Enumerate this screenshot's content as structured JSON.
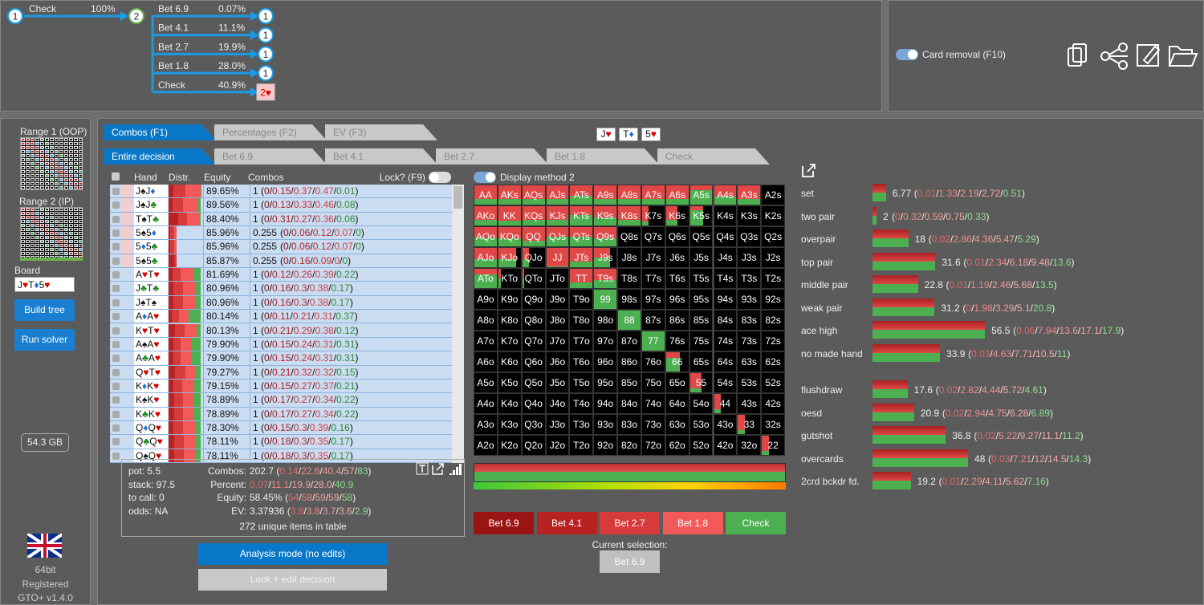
{
  "tree": {
    "root": "1",
    "root_action": "Check",
    "root_pct": "100%",
    "node": "2",
    "actions": [
      {
        "label": "Bet 6.9",
        "pct": "0.07%",
        "child": "1"
      },
      {
        "label": "Bet 4.1",
        "pct": "11.1%",
        "child": "1"
      },
      {
        "label": "Bet 2.7",
        "pct": "19.9%",
        "child": "1"
      },
      {
        "label": "Bet 1.8",
        "pct": "28.0%",
        "child": "1"
      },
      {
        "label": "Check",
        "pct": "40.9%",
        "child": "2♥"
      }
    ]
  },
  "card_removal": "Card removal (F10)",
  "sidebar": {
    "range1": "Range 1 (OOP)",
    "range2": "Range 2 (IP)",
    "board_label": "Board",
    "board": "J♥T♦5♥",
    "build": "Build tree",
    "run": "Run solver",
    "memory": "54.3 GB",
    "bits": "64bit",
    "registered": "Registered",
    "version": "GTO+ v1.4.0"
  },
  "view_tabs": [
    "Combos (F1)",
    "Percentages (F2)",
    "EV (F3)"
  ],
  "board_cards": [
    "J♥",
    "T♦",
    "5♥"
  ],
  "decision_tabs": [
    "Entire decision",
    "Bet 6.9",
    "Bet 4.1",
    "Bet 2.7",
    "Bet 1.8",
    "Check"
  ],
  "table": {
    "headers": [
      "Hand",
      "Distr.",
      "Equity",
      "Combos"
    ],
    "lock": "Lock? (F9)",
    "rows": [
      {
        "hand": "J♠J♦",
        "equity": "89.65%",
        "total": 1,
        "breakdown": "(0/0.15/0.37/0.47/0.01)"
      },
      {
        "hand": "J♠J♣",
        "equity": "89.56%",
        "total": 1,
        "breakdown": "(0/0.13/0.33/0.46/0.08)"
      },
      {
        "hand": "T♠T♣",
        "equity": "88.40%",
        "total": 1,
        "breakdown": "(0/0.31/0.27/0.36/0.06)"
      },
      {
        "hand": "5♠5♦",
        "equity": "85.96%",
        "total": 0.255,
        "breakdown": "(0/0.06/0.12/0.07/0)"
      },
      {
        "hand": "5♦5♣",
        "equity": "85.96%",
        "total": 0.255,
        "breakdown": "(0/0.06/0.12/0.07/0)"
      },
      {
        "hand": "5♠5♣",
        "equity": "85.87%",
        "total": 0.255,
        "breakdown": "(0/0.16/0.09/0/0)"
      },
      {
        "hand": "A♥T♥",
        "equity": "81.69%",
        "total": 1,
        "breakdown": "(0/0.12/0.26/0.39/0.22)"
      },
      {
        "hand": "J♣T♣",
        "equity": "80.96%",
        "total": 1,
        "breakdown": "(0/0.16/0.3/0.38/0.17)"
      },
      {
        "hand": "J♠T♠",
        "equity": "80.96%",
        "total": 1,
        "breakdown": "(0/0.16/0.3/0.38/0.17)"
      },
      {
        "hand": "A♦A♥",
        "equity": "80.14%",
        "total": 1,
        "breakdown": "(0/0.11/0.21/0.31/0.37)"
      },
      {
        "hand": "K♥T♥",
        "equity": "80.13%",
        "total": 1,
        "breakdown": "(0/0.21/0.29/0.38/0.12)"
      },
      {
        "hand": "A♠A♥",
        "equity": "79.90%",
        "total": 1,
        "breakdown": "(0/0.15/0.24/0.31/0.31)"
      },
      {
        "hand": "A♣A♥",
        "equity": "79.90%",
        "total": 1,
        "breakdown": "(0/0.15/0.24/0.31/0.31)"
      },
      {
        "hand": "Q♥T♥",
        "equity": "79.27%",
        "total": 1,
        "breakdown": "(0/0.21/0.32/0.32/0.15)"
      },
      {
        "hand": "K♦K♥",
        "equity": "79.15%",
        "total": 1,
        "breakdown": "(0/0.15/0.27/0.37/0.21)"
      },
      {
        "hand": "K♠K♥",
        "equity": "78.89%",
        "total": 1,
        "breakdown": "(0/0.17/0.27/0.34/0.22)"
      },
      {
        "hand": "K♣K♥",
        "equity": "78.89%",
        "total": 1,
        "breakdown": "(0/0.17/0.27/0.34/0.22)"
      },
      {
        "hand": "Q♦Q♥",
        "equity": "78.30%",
        "total": 1,
        "breakdown": "(0/0.15/0.3/0.39/0.16)"
      },
      {
        "hand": "Q♣Q♥",
        "equity": "78.11%",
        "total": 1,
        "breakdown": "(0/0.18/0.3/0.35/0.17)"
      },
      {
        "hand": "Q♠Q♥",
        "equity": "78.11%",
        "total": 1,
        "breakdown": "(0/0.18/0.3/0.35/0.17)"
      }
    ]
  },
  "display_method": "Display method 2",
  "summary": {
    "left": [
      "pot: 5.5",
      "stack: 97.5",
      "to call: 0",
      "odds: NA"
    ],
    "right": [
      [
        "Combos:",
        "202.7 (0.14/22.6/40.4/57/83)"
      ],
      [
        "Percent:",
        "0.07/11.1/19.9/28.0/40.9"
      ],
      [
        "Equity:",
        "58.45% (54/58/59/59/58)"
      ],
      [
        "EV:",
        "3.37936 (3.8/3.8/3.7/3.6/2.9)"
      ]
    ],
    "unique": "272 unique items in table"
  },
  "modes": [
    "Analysis mode (no edits)",
    "Lock + edit decision"
  ],
  "matrix": [
    [
      "AA",
      "AKs",
      "AQs",
      "AJs",
      "ATs",
      "A9s",
      "A8s",
      "A7s",
      "A6s",
      "A5s",
      "A4s",
      "A3s",
      "A2s"
    ],
    [
      "AKo",
      "KK",
      "KQs",
      "KJs",
      "KTs",
      "K9s",
      "K8s",
      "K7s",
      "K6s",
      "K5s",
      "K4s",
      "K3s",
      "K2s"
    ],
    [
      "AQo",
      "KQo",
      "QQ",
      "QJs",
      "QTs",
      "Q9s",
      "Q8s",
      "Q7s",
      "Q6s",
      "Q5s",
      "Q4s",
      "Q3s",
      "Q2s"
    ],
    [
      "AJo",
      "KJo",
      "QJo",
      "JJ",
      "JTs",
      "J9s",
      "J8s",
      "J7s",
      "J6s",
      "J5s",
      "J4s",
      "J3s",
      "J2s"
    ],
    [
      "ATo",
      "KTo",
      "QTo",
      "JTo",
      "TT",
      "T9s",
      "T8s",
      "T7s",
      "T6s",
      "T5s",
      "T4s",
      "T3s",
      "T2s"
    ],
    [
      "A9o",
      "K9o",
      "Q9o",
      "J9o",
      "T9o",
      "99",
      "98s",
      "97s",
      "96s",
      "95s",
      "94s",
      "93s",
      "92s"
    ],
    [
      "A8o",
      "K8o",
      "Q8o",
      "J8o",
      "T8o",
      "98o",
      "88",
      "87s",
      "86s",
      "85s",
      "84s",
      "83s",
      "82s"
    ],
    [
      "A7o",
      "K7o",
      "Q7o",
      "J7o",
      "T7o",
      "97o",
      "87o",
      "77",
      "76s",
      "75s",
      "74s",
      "73s",
      "72s"
    ],
    [
      "A6o",
      "K6o",
      "Q6o",
      "J6o",
      "T6o",
      "96o",
      "86o",
      "76o",
      "66",
      "65s",
      "64s",
      "63s",
      "62s"
    ],
    [
      "A5o",
      "K5o",
      "Q5o",
      "J5o",
      "T5o",
      "95o",
      "85o",
      "75o",
      "65o",
      "55",
      "54s",
      "53s",
      "52s"
    ],
    [
      "A4o",
      "K4o",
      "Q4o",
      "J4o",
      "T4o",
      "94o",
      "84o",
      "74o",
      "64o",
      "54o",
      "44",
      "43s",
      "42s"
    ],
    [
      "A3o",
      "K3o",
      "Q3o",
      "J3o",
      "T3o",
      "93o",
      "83o",
      "73o",
      "63o",
      "53o",
      "43o",
      "33",
      "32s"
    ],
    [
      "A2o",
      "K2o",
      "Q2o",
      "J2o",
      "T2o",
      "92o",
      "82o",
      "72o",
      "62o",
      "52o",
      "42o",
      "32o",
      "22"
    ]
  ],
  "actions": [
    "Bet 6.9",
    "Bet 4.1",
    "Bet 2.7",
    "Bet 1.8",
    "Check"
  ],
  "current_label": "Current selection:",
  "current": "Bet 6.9",
  "categories": [
    {
      "name": "set",
      "total": 6.77,
      "breakdown": "(0.01/1.33/2.19/2.72/0.51)"
    },
    {
      "name": "two pair",
      "total": 2,
      "breakdown": "(0/0.32/0.59/0.75/0.33)"
    },
    {
      "name": "overpair",
      "total": 18,
      "breakdown": "(0.02/2.86/4.36/5.47/5.29)"
    },
    {
      "name": "top pair",
      "total": 31.6,
      "breakdown": "(0.01/2.34/6.18/9.48/13.6)"
    },
    {
      "name": "middle pair",
      "total": 22.8,
      "breakdown": "(0.01/1.19/2.46/5.68/13.5)"
    },
    {
      "name": "weak pair",
      "total": 31.2,
      "breakdown": "(0/1.98/3.29/5.1/20.8)"
    },
    {
      "name": "ace high",
      "total": 56.5,
      "breakdown": "(0.06/7.94/13.6/17.1/17.9)"
    },
    {
      "name": "no made hand",
      "total": 33.9,
      "breakdown": "(0.03/4.63/7.71/10.5/11)"
    },
    {
      "name": "flushdraw",
      "total": 17.6,
      "breakdown": "(0.02/2.82/4.44/5.72/4.61)"
    },
    {
      "name": "oesd",
      "total": 20.9,
      "breakdown": "(0.02/2.94/4.75/6.28/6.89)"
    },
    {
      "name": "gutshot",
      "total": 36.8,
      "breakdown": "(0.02/5.22/9.27/11.1/11.2)"
    },
    {
      "name": "overcards",
      "total": 48,
      "breakdown": "(0.03/7.21/12/14.5/14.3)"
    },
    {
      "name": "2crd bckdr fd.",
      "total": 19.2,
      "breakdown": "(0.01/2.29/4.11/5.62/7.16)"
    }
  ]
}
